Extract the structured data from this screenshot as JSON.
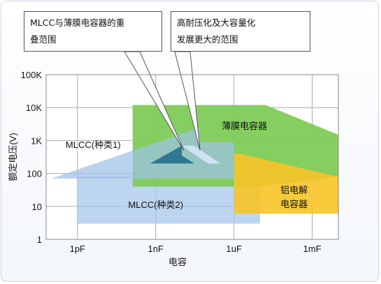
{
  "chart_data": {
    "type": "area",
    "xlabel": "电容",
    "ylabel": "额定电压(V)",
    "x_scale": "log",
    "y_scale": "log",
    "x_ticks": [
      {
        "value": 1e-12,
        "label": "1pF"
      },
      {
        "value": 1e-09,
        "label": "1nF"
      },
      {
        "value": 1e-06,
        "label": "1uF"
      },
      {
        "value": 0.001,
        "label": "1mF"
      }
    ],
    "y_ticks": [
      {
        "value": 1,
        "label": "1"
      },
      {
        "value": 10,
        "label": "10"
      },
      {
        "value": 100,
        "label": "100"
      },
      {
        "value": 1000,
        "label": "1K"
      },
      {
        "value": 10000,
        "label": "10K"
      },
      {
        "value": 100000,
        "label": "100K"
      }
    ],
    "xlim": [
      6.3e-14,
      0.01
    ],
    "ylim": [
      1,
      100000
    ],
    "grid": true,
    "regions": [
      {
        "id": "mlcc2",
        "label": "MLCC(种类2)",
        "color": "#a7c7ea",
        "polygon": [
          [
            1e-12,
            3
          ],
          [
            1e-05,
            3
          ],
          [
            1e-05,
            80
          ],
          [
            1e-12,
            80
          ]
        ],
        "label_at": [
          1e-09,
          9
        ]
      },
      {
        "id": "film",
        "label": "薄膜电容器",
        "color": "#7ecb57",
        "polygon": [
          [
            1.3e-10,
            40
          ],
          [
            1.3e-10,
            12000
          ],
          [
            1.6e-05,
            12000
          ],
          [
            0.01,
            1500
          ],
          [
            0.01,
            80
          ],
          [
            1e-05,
            40
          ]
        ],
        "label_at": [
          2.5e-06,
          2200
        ]
      },
      {
        "id": "mlcc1",
        "label": "MLCC(种类1)",
        "color": "#9ec2e8",
        "polygon": [
          [
            1e-13,
            70
          ],
          [
            5e-08,
            2500
          ],
          [
            5e-08,
            900
          ],
          [
            1e-06,
            900
          ],
          [
            1e-06,
            70
          ]
        ],
        "label_at": [
          4e-12,
          600
        ]
      },
      {
        "id": "aluminum",
        "label_lines": [
          "铝电解",
          "电容器"
        ],
        "color": "#f7c427",
        "polygon": [
          [
            1e-06,
            6
          ],
          [
            0.01,
            6
          ],
          [
            0.01,
            80
          ],
          [
            1.6e-06,
            400
          ],
          [
            1e-06,
            400
          ]
        ],
        "label_at": [
          0.0002,
          25
        ]
      },
      {
        "id": "overlap",
        "label": "",
        "color": "#2f7893",
        "polygon": [
          [
            6e-10,
            200
          ],
          [
            1e-08,
            700
          ],
          [
            1e-08,
            350
          ],
          [
            3e-08,
            200
          ]
        ]
      },
      {
        "id": "high-cap",
        "label": "",
        "color": "#cfe2f3",
        "polygon": [
          [
            1e-08,
            700
          ],
          [
            3e-08,
            700
          ],
          [
            3e-07,
            200
          ],
          [
            1e-07,
            200
          ]
        ]
      }
    ],
    "callouts": [
      {
        "lines": [
          "MLCC与薄膜电容器的重",
          "叠范围"
        ],
        "target": [
          1.2e-08,
          500
        ]
      },
      {
        "lines": [
          "高耐压化及大容量化",
          "发展更大的范围"
        ],
        "target": [
          5e-08,
          500
        ]
      }
    ]
  }
}
